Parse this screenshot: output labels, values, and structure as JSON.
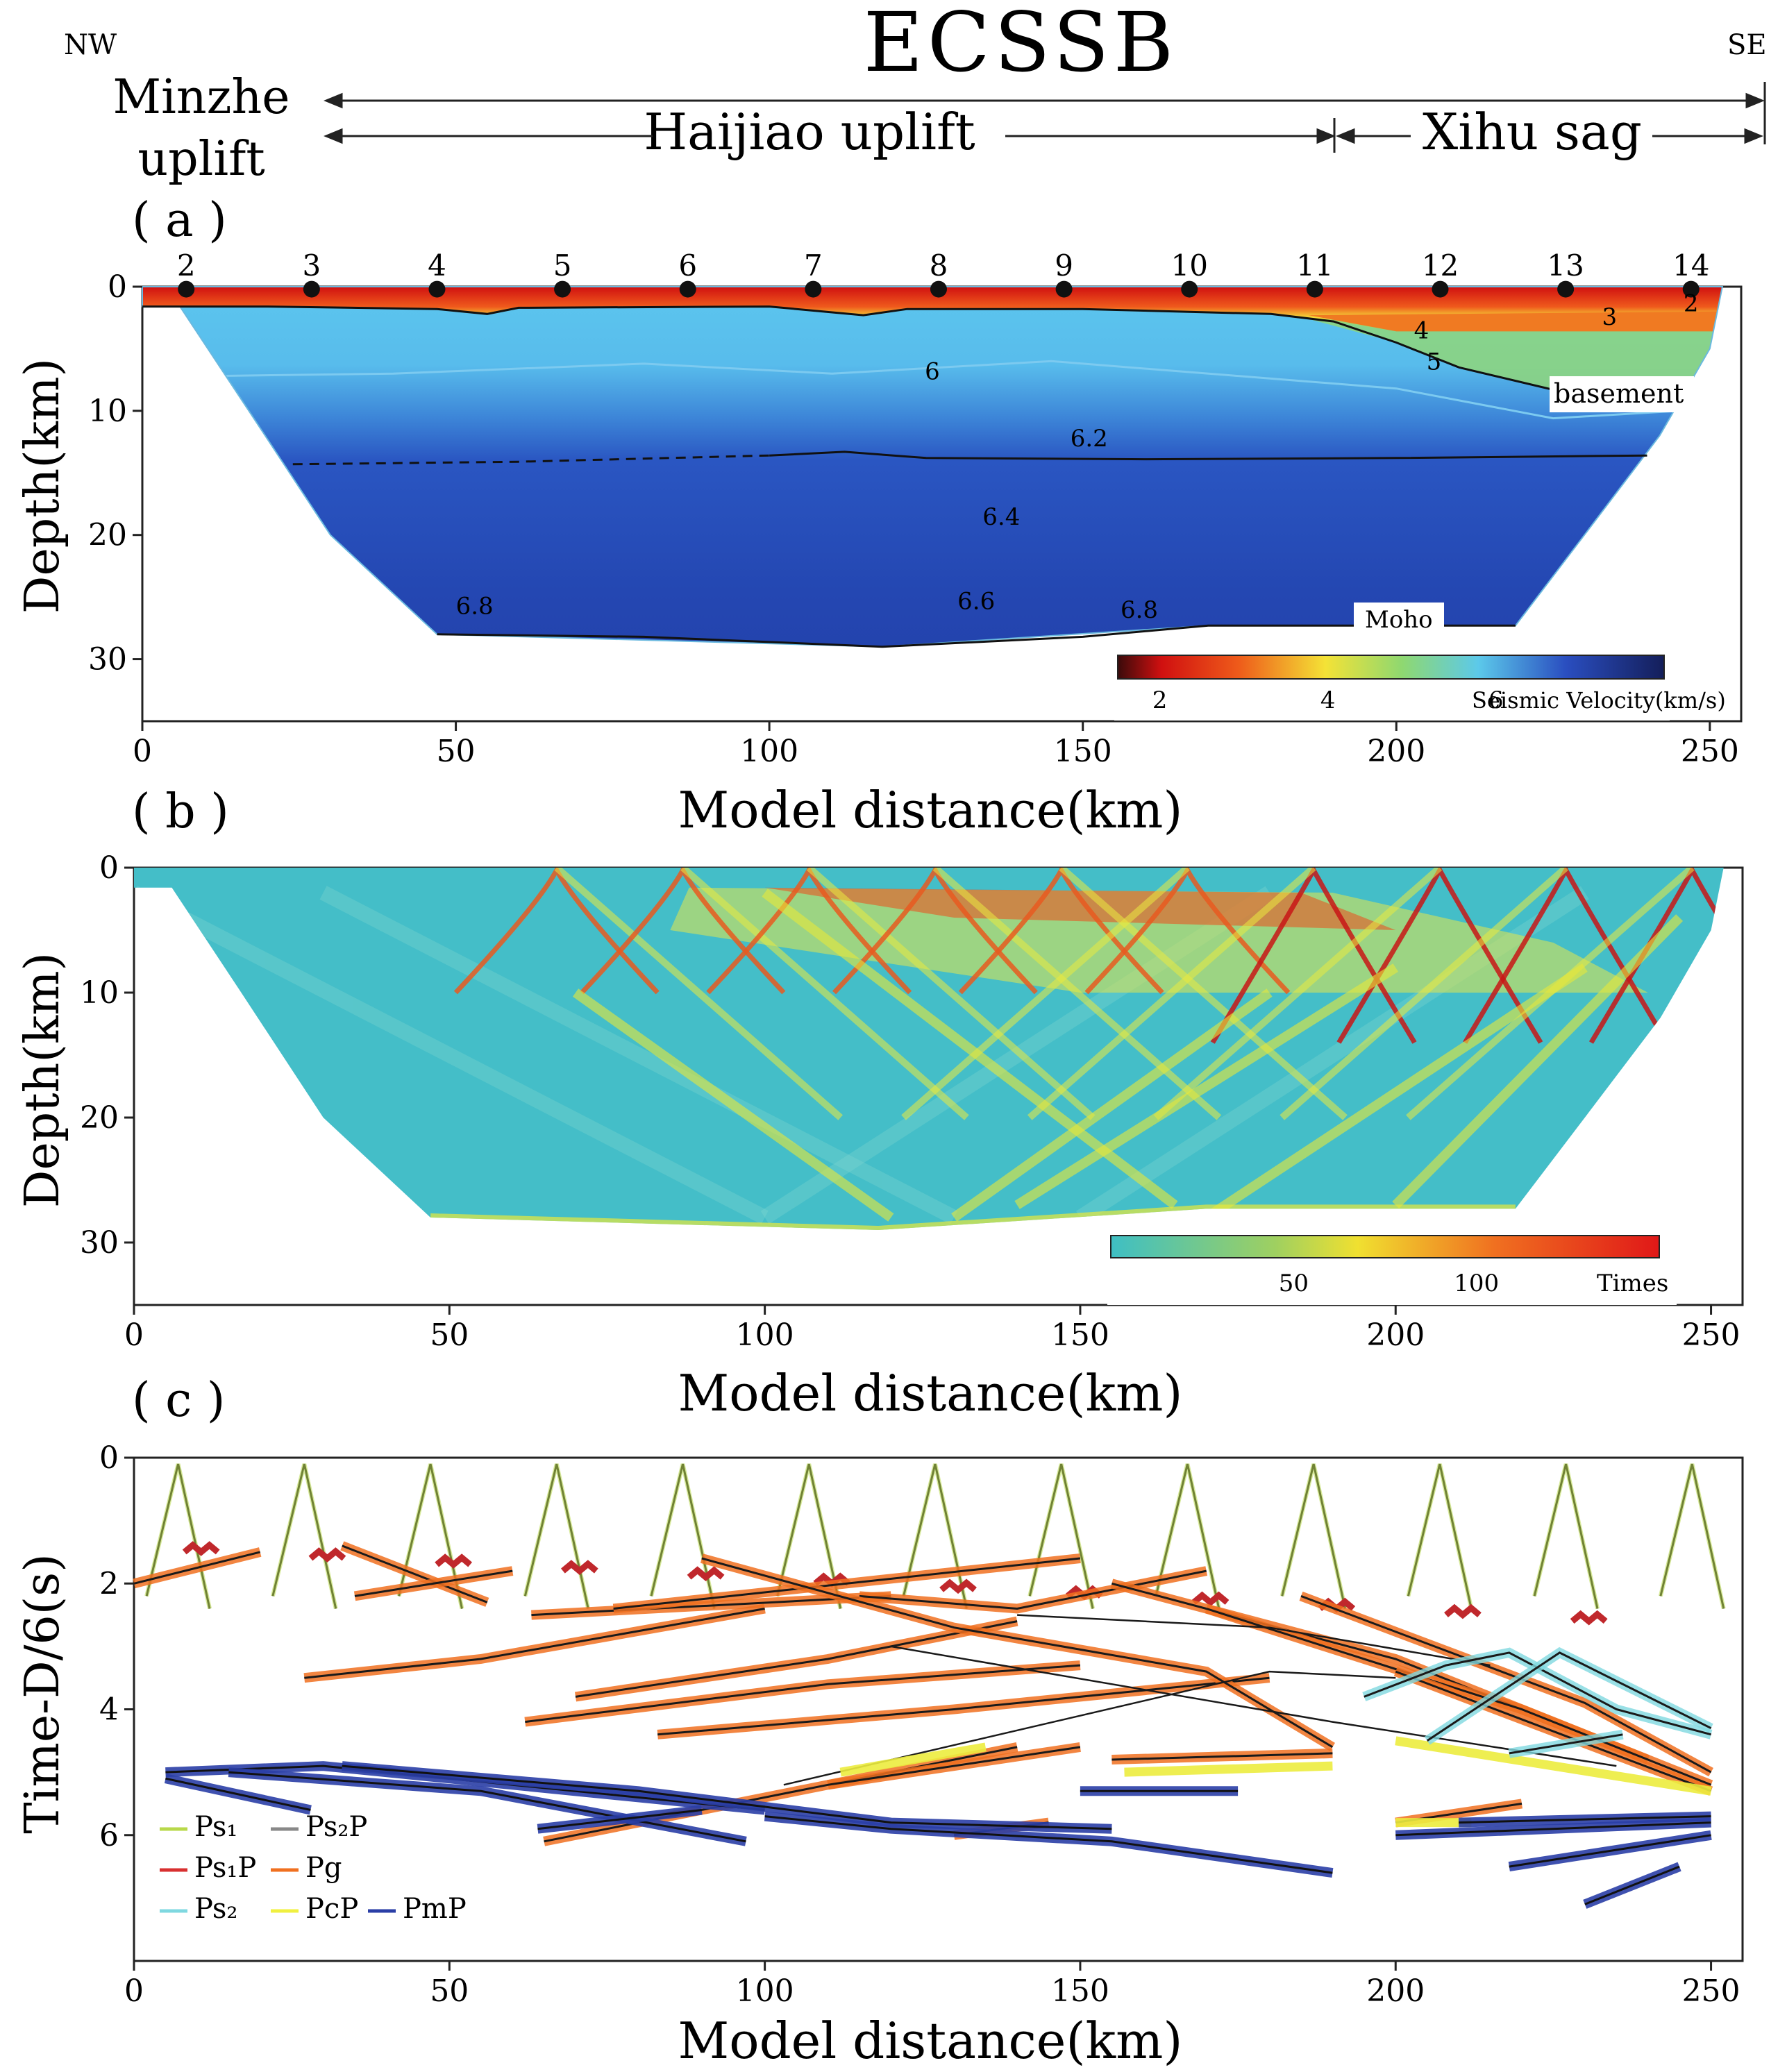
{
  "header": {
    "title": "ECSSB",
    "left_dir": "NW",
    "right_dir": "SE",
    "region_1_line1": "Minzhe",
    "region_1_line2": "uplift",
    "region_2": "Haijiao uplift",
    "region_3": "Xihu sag"
  },
  "colors": {
    "velocity_low": "#e01010",
    "velocity_mid": "#f0e030",
    "velocity_high": "#1a2e9a",
    "hit_low": "#3ebfc4",
    "hit_high": "#d81010",
    "pmp": "#2a3ea6",
    "pg": "#f07020",
    "ps2": "#7fd8e0"
  },
  "chart_data": [
    {
      "panel_label": "( a )",
      "type": "heatmap",
      "xlabel": "Model distance(km)",
      "ylabel": "Depth(km)",
      "xlim": [
        0,
        255
      ],
      "ylim": [
        35,
        0
      ],
      "x_ticks": [
        "0",
        "50",
        "100",
        "150",
        "200",
        "250"
      ],
      "y_ticks": [
        "0",
        "10",
        "20",
        "30"
      ],
      "obs_stations": [
        {
          "id": "2",
          "x": 7
        },
        {
          "id": "3",
          "x": 27
        },
        {
          "id": "4",
          "x": 47
        },
        {
          "id": "5",
          "x": 67
        },
        {
          "id": "6",
          "x": 87
        },
        {
          "id": "7",
          "x": 107
        },
        {
          "id": "8",
          "x": 127
        },
        {
          "id": "9",
          "x": 147
        },
        {
          "id": "10",
          "x": 167
        },
        {
          "id": "11",
          "x": 187
        },
        {
          "id": "12",
          "x": 207
        },
        {
          "id": "13",
          "x": 227
        },
        {
          "id": "14",
          "x": 247
        }
      ],
      "contour_labels": [
        {
          "text": "2",
          "x": 247,
          "y": 1.3
        },
        {
          "text": "3",
          "x": 234,
          "y": 2.4
        },
        {
          "text": "4",
          "x": 204,
          "y": 3.5
        },
        {
          "text": "5",
          "x": 206,
          "y": 6.0
        },
        {
          "text": "6",
          "x": 126,
          "y": 6.8
        },
        {
          "text": "6.2",
          "x": 151,
          "y": 12.2
        },
        {
          "text": "6.4",
          "x": 137,
          "y": 18.5
        },
        {
          "text": "6.6",
          "x": 133,
          "y": 25.3
        },
        {
          "text": "6.8",
          "x": 53,
          "y": 25.7
        },
        {
          "text": "6.8",
          "x": 159,
          "y": 26.0
        }
      ],
      "annotations": [
        "basement",
        "Moho"
      ],
      "colorbar": {
        "label": "Seismic Velocity(km/s)",
        "ticks": [
          "2",
          "4",
          "6"
        ],
        "range": [
          1.5,
          8
        ]
      },
      "basement": [
        [
          0,
          1.6
        ],
        [
          20,
          1.6
        ],
        [
          47,
          1.8
        ],
        [
          55,
          2.2
        ],
        [
          60,
          1.7
        ],
        [
          100,
          1.6
        ],
        [
          115,
          2.3
        ],
        [
          122,
          1.8
        ],
        [
          150,
          1.8
        ],
        [
          180,
          2.2
        ],
        [
          190,
          2.8
        ],
        [
          200,
          4.5
        ],
        [
          210,
          6.5
        ],
        [
          225,
          8.3
        ],
        [
          240,
          8.6
        ]
      ],
      "interface_6_2": [
        [
          24,
          14.3
        ],
        [
          60,
          14.1
        ],
        [
          100,
          13.6
        ],
        [
          112,
          13.3
        ],
        [
          125,
          13.8
        ],
        [
          160,
          13.9
        ],
        [
          200,
          13.8
        ],
        [
          240,
          13.6
        ]
      ],
      "moho": [
        [
          47,
          28.0
        ],
        [
          80,
          28.2
        ],
        [
          118,
          29.0
        ],
        [
          150,
          28.2
        ],
        [
          170,
          27.3
        ],
        [
          219,
          27.3
        ]
      ],
      "model_outline": [
        [
          0,
          0
        ],
        [
          252,
          0
        ],
        [
          250,
          5
        ],
        [
          242,
          12
        ],
        [
          230,
          20
        ],
        [
          219,
          27.3
        ],
        [
          170,
          27.3
        ],
        [
          118,
          29.0
        ],
        [
          47,
          28.0
        ],
        [
          30,
          20
        ],
        [
          17,
          10
        ],
        [
          6,
          1.6
        ],
        [
          0,
          1.6
        ]
      ]
    },
    {
      "panel_label": "( b )",
      "type": "heatmap",
      "xlabel": "Model distance(km)",
      "ylabel": "Depth(km)",
      "xlim": [
        0,
        255
      ],
      "ylim": [
        35,
        0
      ],
      "x_ticks": [
        "0",
        "50",
        "100",
        "150",
        "200",
        "250"
      ],
      "y_ticks": [
        "0",
        "10",
        "20",
        "30"
      ],
      "colorbar": {
        "label": "Times",
        "ticks": [
          "50",
          "100"
        ],
        "range": [
          0,
          150
        ]
      }
    },
    {
      "panel_label": "( c )",
      "type": "line",
      "xlabel": "Model distance(km)",
      "ylabel": "Time-D/6(s)",
      "xlim": [
        0,
        255
      ],
      "ylim": [
        8,
        0
      ],
      "x_ticks": [
        "0",
        "50",
        "100",
        "150",
        "200",
        "250"
      ],
      "y_ticks": [
        "0",
        "2",
        "4",
        "6"
      ],
      "legend": [
        {
          "name": "Ps₁",
          "color": "#b8d84a"
        },
        {
          "name": "Ps₁P",
          "color": "#d83030"
        },
        {
          "name": "Ps₂",
          "color": "#7fd8e0"
        },
        {
          "name": "Ps₂P",
          "color": "#888888"
        },
        {
          "name": "Pg",
          "color": "#f07020"
        },
        {
          "name": "PcP",
          "color": "#f0f040"
        },
        {
          "name": "PmP",
          "color": "#2a3ea6"
        }
      ],
      "legend_position": "bottom-left"
    }
  ]
}
